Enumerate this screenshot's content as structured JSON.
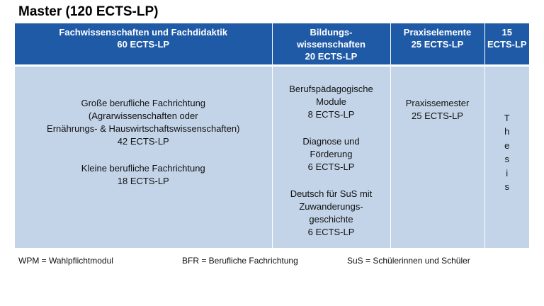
{
  "title": "Master (120 ECTS-LP)",
  "headers": [
    [
      "Fachwissenschaften und Fachdidaktik",
      "60 ECTS-LP"
    ],
    [
      "Bildungs-",
      "wissenschaften",
      "20 ECTS-LP"
    ],
    [
      "Praxiselemente",
      "25 ECTS-LP"
    ],
    [
      "15",
      "ECTS-LP"
    ]
  ],
  "col1": {
    "large": [
      "Große berufliche Fachrichtung",
      "(Agrarwissenschaften oder",
      "Ernährungs- & Hauswirtschaftswissenschaften)",
      "42 ECTS-LP"
    ],
    "small": [
      "Kleine berufliche Fachrichtung",
      "18 ECTS-LP"
    ]
  },
  "col2": {
    "modules": [
      "Berufspädagogische",
      "Module",
      "8 ECTS-LP"
    ],
    "diagnose": [
      "Diagnose und",
      "Förderung",
      "6 ECTS-LP"
    ],
    "deutsch": [
      "Deutsch für SuS mit",
      "Zuwanderungs-",
      "geschichte",
      "6 ECTS-LP"
    ]
  },
  "col3": [
    "Praxissemester",
    "25 ECTS-LP"
  ],
  "col4": [
    "T",
    "h",
    "e",
    "s",
    "i",
    "s"
  ],
  "footer": {
    "wpm": "WPM = Wahlpflichtmodul",
    "bfr": "BFR = Berufliche Fachrichtung",
    "sus": "SuS = Schülerinnen und Schüler"
  }
}
